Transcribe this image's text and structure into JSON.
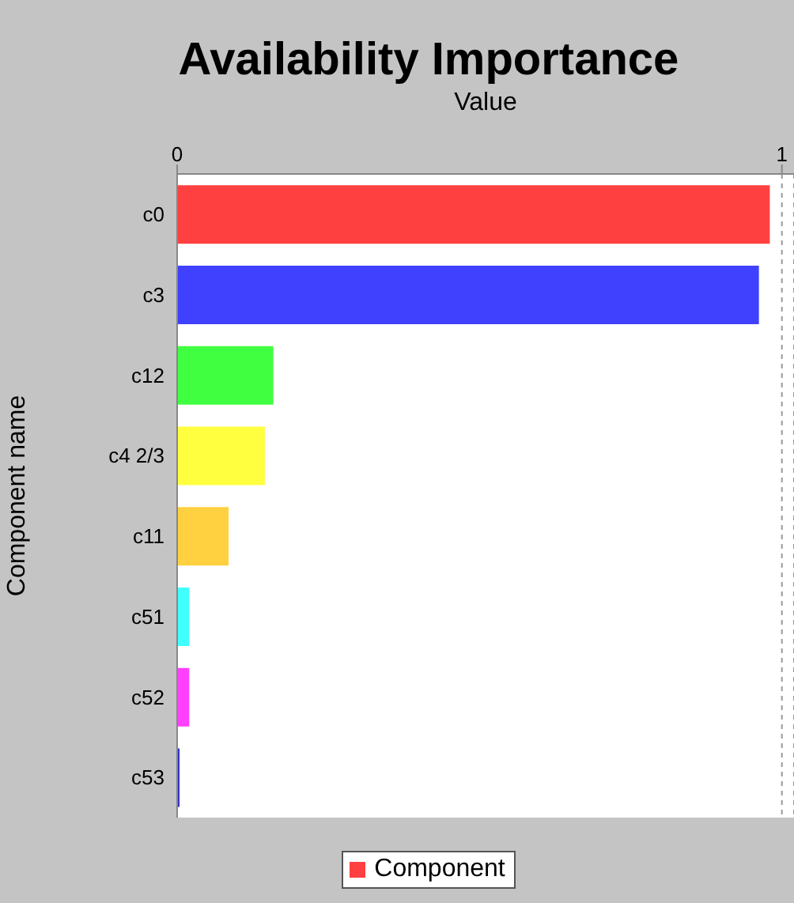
{
  "chart_data": {
    "type": "bar",
    "orientation": "horizontal",
    "title": "Availability Importance",
    "xlabel": "Value",
    "ylabel": "Component name",
    "categories": [
      "c0",
      "c3",
      "c12",
      "c4 2/3",
      "c11",
      "c51",
      "c52",
      "c53"
    ],
    "series": [
      {
        "name": "Component",
        "color": "#ff4040",
        "colors": [
          "#ff4040",
          "#4040ff",
          "#40ff40",
          "#ffff40",
          "#ffd040",
          "#40ffff",
          "#ff40ff",
          "#3434c8"
        ],
        "values": [
          0.98,
          0.962,
          0.159,
          0.145,
          0.085,
          0.02,
          0.02,
          0.004
        ]
      }
    ],
    "xlim": [
      0,
      1.02
    ],
    "xticks": [
      0,
      1
    ],
    "grid": "x",
    "legend": "bottom"
  }
}
